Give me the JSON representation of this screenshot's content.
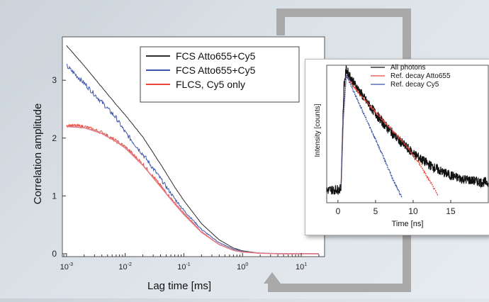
{
  "colors": {
    "black_series": "#2b2b2b",
    "blue_series": "#3a55a8",
    "red_series": "#e8483a",
    "pink_series": "#e07b86",
    "connector": "#a9a9a9"
  },
  "chart_data": [
    {
      "type": "line",
      "xscale": "log",
      "xlim": [
        0.00085,
        25
      ],
      "ylim": [
        -0.05,
        3.75
      ],
      "xlabel": "Lag time [ms]",
      "ylabel": "Correlation amplitude",
      "xticks": [
        {
          "value": 0.001,
          "base": "10",
          "exp": "-3"
        },
        {
          "value": 0.01,
          "base": "10",
          "exp": "-2"
        },
        {
          "value": 0.1,
          "base": "10",
          "exp": "-1"
        },
        {
          "value": 1,
          "base": "10",
          "exp": "0"
        },
        {
          "value": 10,
          "base": "10",
          "exp": "1"
        }
      ],
      "yticks": [
        0,
        1,
        2,
        3
      ],
      "legend_position": "top-right",
      "series": [
        {
          "name": "FCS Atto655+Cy5",
          "color": "#2b2b2b",
          "noise": 0.004,
          "x": [
            0.001,
            0.002,
            0.004,
            0.007,
            0.01,
            0.02,
            0.04,
            0.07,
            0.1,
            0.2,
            0.4,
            0.7,
            1,
            2,
            4,
            7,
            10,
            20
          ],
          "y": [
            3.6,
            3.25,
            2.88,
            2.58,
            2.4,
            2.02,
            1.55,
            1.15,
            0.92,
            0.52,
            0.24,
            0.1,
            0.05,
            0.01,
            0.0,
            0.0,
            0.0,
            0.0
          ]
        },
        {
          "name": "FCS Atto655+Cy5",
          "color": "#3a55a8",
          "noise": 0.04,
          "x": [
            0.001,
            0.002,
            0.004,
            0.007,
            0.01,
            0.02,
            0.04,
            0.07,
            0.1,
            0.2,
            0.4,
            0.7,
            1,
            2,
            4,
            7,
            10,
            20
          ],
          "y": [
            3.25,
            2.95,
            2.62,
            2.35,
            2.1,
            1.72,
            1.3,
            0.95,
            0.75,
            0.42,
            0.19,
            0.08,
            0.04,
            0.01,
            0.0,
            0.0,
            0.0,
            0.0
          ]
        },
        {
          "name": "FLCS, Cy5 only",
          "color": "#e8483a",
          "noise": 0.03,
          "x": [
            0.001,
            0.002,
            0.004,
            0.007,
            0.01,
            0.02,
            0.04,
            0.07,
            0.1,
            0.2,
            0.4,
            0.7,
            1,
            2,
            4,
            7,
            10,
            20
          ],
          "y": [
            2.22,
            2.2,
            2.1,
            1.95,
            1.85,
            1.55,
            1.18,
            0.88,
            0.7,
            0.38,
            0.16,
            0.06,
            0.03,
            0.01,
            0.0,
            0.0,
            0.0,
            0.0
          ]
        },
        {
          "name": "",
          "color": "#e07b86",
          "noise": 0.0,
          "x": [
            0.001,
            0.002,
            0.004,
            0.007,
            0.01,
            0.02,
            0.04,
            0.07,
            0.1,
            0.2,
            0.4,
            0.7,
            1,
            2,
            4,
            7,
            10,
            20
          ],
          "y": [
            2.2,
            2.18,
            2.08,
            1.94,
            1.83,
            1.53,
            1.16,
            0.86,
            0.68,
            0.37,
            0.16,
            0.06,
            0.03,
            0.01,
            0.0,
            0.0,
            0.0,
            0.0
          ]
        }
      ]
    },
    {
      "type": "line",
      "xlim": [
        -1.5,
        20
      ],
      "ylim": [
        0,
        1.0
      ],
      "xlabel": "Time [ns]",
      "ylabel": "Intensity [counts]",
      "xticks": [
        0,
        5,
        10,
        15
      ],
      "legend_position": "top-right",
      "series": [
        {
          "name": "All photons",
          "color": "#111111",
          "noise": 0.035,
          "x": [
            -1.5,
            0.4,
            0.6,
            0.8,
            1.1,
            2,
            3,
            4,
            5,
            6,
            7,
            8,
            9,
            10,
            11,
            12,
            13,
            14,
            15,
            16,
            17,
            18,
            19,
            20
          ],
          "y": [
            0.09,
            0.1,
            0.5,
            0.85,
            0.97,
            0.88,
            0.8,
            0.72,
            0.65,
            0.58,
            0.52,
            0.46,
            0.41,
            0.36,
            0.32,
            0.28,
            0.25,
            0.22,
            0.2,
            0.18,
            0.17,
            0.16,
            0.15,
            0.15
          ]
        },
        {
          "name": "Ref. decay Atto655",
          "color": "#e8483a",
          "noise": 0.008,
          "x": [
            0.4,
            0.7,
            1.1,
            3,
            5,
            7,
            9,
            11,
            12.5,
            13.3
          ],
          "y": [
            0.1,
            0.6,
            0.92,
            0.78,
            0.66,
            0.54,
            0.42,
            0.27,
            0.13,
            0.05
          ]
        },
        {
          "name": "Ref. decay Cy5",
          "color": "#3a55a8",
          "noise": 0.008,
          "x": [
            0.4,
            0.7,
            1.1,
            2,
            3,
            4,
            5,
            6,
            7,
            8,
            8.5
          ],
          "y": [
            0.1,
            0.6,
            0.93,
            0.82,
            0.7,
            0.58,
            0.46,
            0.34,
            0.21,
            0.09,
            0.04
          ]
        }
      ]
    }
  ]
}
